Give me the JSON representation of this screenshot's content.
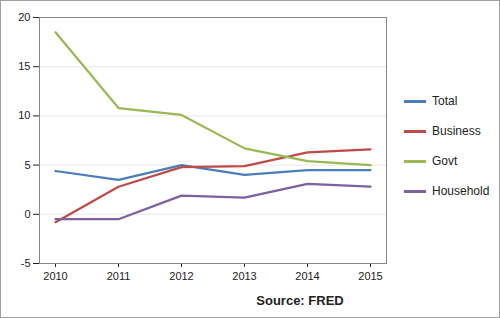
{
  "chart_data": {
    "type": "line",
    "caption": "Source: FRED",
    "categories": [
      "2010",
      "2011",
      "2012",
      "2013",
      "2014",
      "2015"
    ],
    "series": [
      {
        "name": "Total",
        "color": "#4a7ebb",
        "values": [
          4.4,
          3.5,
          5.0,
          4.0,
          4.5,
          4.5
        ]
      },
      {
        "name": "Business",
        "color": "#be4b48",
        "values": [
          -0.8,
          2.8,
          4.8,
          4.9,
          6.3,
          6.6
        ]
      },
      {
        "name": "Govt",
        "color": "#98b954",
        "values": [
          18.5,
          10.8,
          10.1,
          6.7,
          5.4,
          5.0
        ]
      },
      {
        "name": "Household",
        "color": "#7d60a0",
        "values": [
          -0.5,
          -0.5,
          1.9,
          1.7,
          3.1,
          2.8
        ]
      }
    ],
    "ylim": [
      -5,
      20
    ],
    "yticks": [
      -5,
      0,
      5,
      10,
      15,
      20
    ],
    "grid": true,
    "legend": "right"
  }
}
